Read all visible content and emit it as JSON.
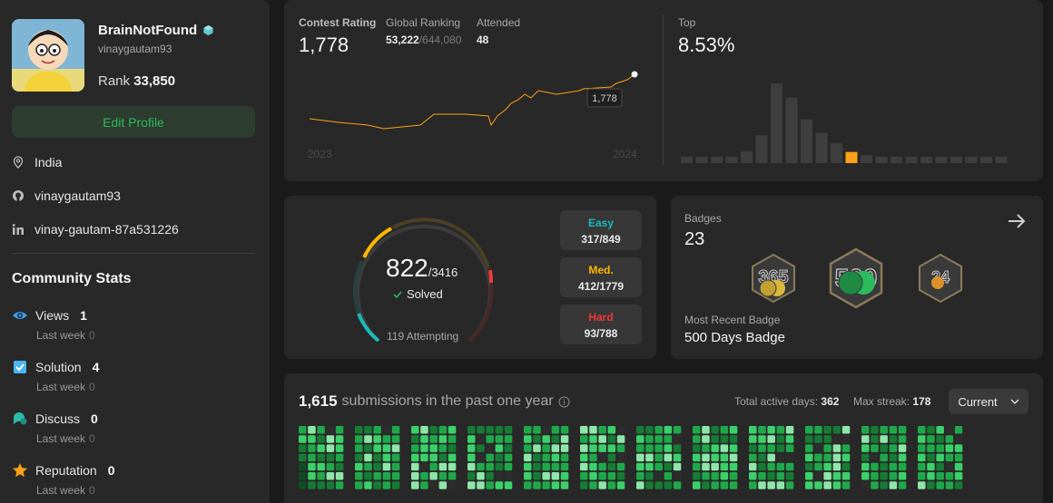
{
  "profile": {
    "name": "BrainNotFound",
    "handle": "vinaygautam93",
    "rank_label": "Rank",
    "rank_value": "33,850",
    "edit_label": "Edit Profile",
    "location": "India",
    "github": "vinaygautam93",
    "linkedin": "vinay-gautam-87a531226"
  },
  "community": {
    "title": "Community Stats",
    "stats": [
      {
        "label": "Views",
        "value": "1",
        "sub_label": "Last week",
        "sub_value": "0",
        "color": "#3b9df7"
      },
      {
        "label": "Solution",
        "value": "4",
        "sub_label": "Last week",
        "sub_value": "0",
        "color": "#3b9df7"
      },
      {
        "label": "Discuss",
        "value": "0",
        "sub_label": "Last week",
        "sub_value": "0",
        "color": "#2cbcac"
      },
      {
        "label": "Reputation",
        "value": "0",
        "sub_label": "Last week",
        "sub_value": "0",
        "color": "#ffa116"
      }
    ]
  },
  "contest": {
    "rating_label": "Contest Rating",
    "rating_value": "1,778",
    "global_label": "Global Ranking",
    "global_value": "53,222",
    "global_total": "/644,080",
    "attended_label": "Attended",
    "attended_value": "48",
    "top_label": "Top",
    "top_value": "8.53%",
    "tooltip": "1,778",
    "year_start": "2023",
    "year_end": "2024",
    "line_color": "#ffa116",
    "histogram": [
      0.08,
      0.08,
      0.08,
      0.08,
      0.15,
      0.35,
      1.0,
      0.82,
      0.55,
      0.38,
      0.25,
      0.14,
      0.1,
      0.08,
      0.08,
      0.08,
      0.08,
      0.08,
      0.08,
      0.08,
      0.08,
      0.08
    ],
    "histogram_highlight_index": 11
  },
  "solved": {
    "count": "822",
    "total": "/3416",
    "solved_label": "Solved",
    "attempting": "119 Attempting",
    "easy_label": "Easy",
    "easy_value": "317/849",
    "medium_label": "Med.",
    "medium_value": "412/1779",
    "hard_label": "Hard",
    "hard_value": "93/788",
    "easy_color": "#1cbaba",
    "medium_color": "#ffb700",
    "hard_color": "#f63737"
  },
  "badges": {
    "label": "Badges",
    "count": "23",
    "recent_label": "Most Recent Badge",
    "recent_value": "500 Days Badge",
    "icons": [
      "365-days-badge-icon",
      "500-days-badge-icon",
      "2024-badge-icon"
    ]
  },
  "submissions": {
    "count": "1,615",
    "suffix": "submissions in the past one year",
    "active_label": "Total active days:",
    "active_value": "362",
    "streak_label": "Max streak:",
    "streak_value": "178",
    "period": "Current"
  }
}
